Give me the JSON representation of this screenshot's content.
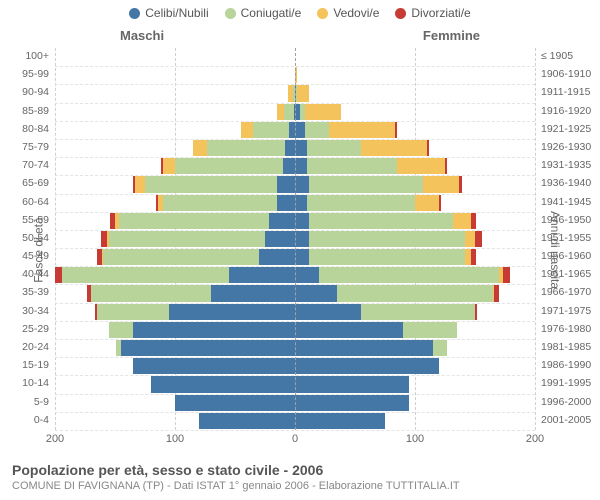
{
  "legend": {
    "items": [
      {
        "label": "Celibi/Nubili",
        "color": "#4577a6"
      },
      {
        "label": "Coniugati/e",
        "color": "#b8d49a"
      },
      {
        "label": "Vedovi/e",
        "color": "#f4c35b"
      },
      {
        "label": "Divorziati/e",
        "color": "#c83b35"
      }
    ]
  },
  "columns": {
    "left": "Maschi",
    "right": "Femmine"
  },
  "axis": {
    "y_left_title": "Fasce di età",
    "y_right_title": "Anni di nascita",
    "x_max": 200,
    "x_ticks": [
      200,
      100,
      0,
      100,
      200
    ]
  },
  "colors": {
    "celibi": "#4577a6",
    "coniugati": "#b8d49a",
    "vedovi": "#f4c35b",
    "divorziati": "#c83b35",
    "grid": "#d0d0d0",
    "center": "#a0a0a0",
    "text": "#666"
  },
  "rows": [
    {
      "age": "100+",
      "birth": "≤ 1905",
      "m": {
        "c": 0,
        "m": 0,
        "v": 0,
        "d": 0
      },
      "f": {
        "c": 0,
        "m": 0,
        "v": 0,
        "d": 0
      }
    },
    {
      "age": "95-99",
      "birth": "1906-1910",
      "m": {
        "c": 0,
        "m": 0,
        "v": 0,
        "d": 0
      },
      "f": {
        "c": 0,
        "m": 0,
        "v": 2,
        "d": 0
      }
    },
    {
      "age": "90-94",
      "birth": "1911-1915",
      "m": {
        "c": 0,
        "m": 2,
        "v": 4,
        "d": 0
      },
      "f": {
        "c": 1,
        "m": 1,
        "v": 10,
        "d": 0
      }
    },
    {
      "age": "85-89",
      "birth": "1916-1920",
      "m": {
        "c": 1,
        "m": 8,
        "v": 6,
        "d": 0
      },
      "f": {
        "c": 4,
        "m": 4,
        "v": 30,
        "d": 0
      }
    },
    {
      "age": "80-84",
      "birth": "1921-1925",
      "m": {
        "c": 5,
        "m": 30,
        "v": 10,
        "d": 0
      },
      "f": {
        "c": 8,
        "m": 20,
        "v": 55,
        "d": 2
      }
    },
    {
      "age": "75-79",
      "birth": "1926-1930",
      "m": {
        "c": 8,
        "m": 65,
        "v": 12,
        "d": 0
      },
      "f": {
        "c": 10,
        "m": 45,
        "v": 55,
        "d": 2
      }
    },
    {
      "age": "70-74",
      "birth": "1931-1935",
      "m": {
        "c": 10,
        "m": 90,
        "v": 10,
        "d": 2
      },
      "f": {
        "c": 10,
        "m": 75,
        "v": 40,
        "d": 2
      }
    },
    {
      "age": "65-69",
      "birth": "1936-1940",
      "m": {
        "c": 15,
        "m": 110,
        "v": 8,
        "d": 2
      },
      "f": {
        "c": 12,
        "m": 95,
        "v": 30,
        "d": 2
      }
    },
    {
      "age": "60-64",
      "birth": "1941-1945",
      "m": {
        "c": 15,
        "m": 95,
        "v": 4,
        "d": 2
      },
      "f": {
        "c": 10,
        "m": 90,
        "v": 20,
        "d": 2
      }
    },
    {
      "age": "55-59",
      "birth": "1946-1950",
      "m": {
        "c": 22,
        "m": 125,
        "v": 3,
        "d": 4
      },
      "f": {
        "c": 12,
        "m": 120,
        "v": 15,
        "d": 4
      }
    },
    {
      "age": "50-54",
      "birth": "1951-1955",
      "m": {
        "c": 25,
        "m": 130,
        "v": 2,
        "d": 5
      },
      "f": {
        "c": 12,
        "m": 130,
        "v": 8,
        "d": 6
      }
    },
    {
      "age": "45-49",
      "birth": "1956-1960",
      "m": {
        "c": 30,
        "m": 130,
        "v": 1,
        "d": 4
      },
      "f": {
        "c": 12,
        "m": 130,
        "v": 5,
        "d": 4
      }
    },
    {
      "age": "40-44",
      "birth": "1961-1965",
      "m": {
        "c": 55,
        "m": 140,
        "v": 0,
        "d": 6
      },
      "f": {
        "c": 20,
        "m": 150,
        "v": 3,
        "d": 6
      }
    },
    {
      "age": "35-39",
      "birth": "1966-1970",
      "m": {
        "c": 70,
        "m": 100,
        "v": 0,
        "d": 3
      },
      "f": {
        "c": 35,
        "m": 130,
        "v": 1,
        "d": 4
      }
    },
    {
      "age": "30-34",
      "birth": "1971-1975",
      "m": {
        "c": 105,
        "m": 60,
        "v": 0,
        "d": 2
      },
      "f": {
        "c": 55,
        "m": 95,
        "v": 0,
        "d": 2
      }
    },
    {
      "age": "25-29",
      "birth": "1976-1980",
      "m": {
        "c": 135,
        "m": 20,
        "v": 0,
        "d": 0
      },
      "f": {
        "c": 90,
        "m": 45,
        "v": 0,
        "d": 0
      }
    },
    {
      "age": "20-24",
      "birth": "1981-1985",
      "m": {
        "c": 145,
        "m": 4,
        "v": 0,
        "d": 0
      },
      "f": {
        "c": 115,
        "m": 12,
        "v": 0,
        "d": 0
      }
    },
    {
      "age": "15-19",
      "birth": "1986-1990",
      "m": {
        "c": 135,
        "m": 0,
        "v": 0,
        "d": 0
      },
      "f": {
        "c": 120,
        "m": 0,
        "v": 0,
        "d": 0
      }
    },
    {
      "age": "10-14",
      "birth": "1991-1995",
      "m": {
        "c": 120,
        "m": 0,
        "v": 0,
        "d": 0
      },
      "f": {
        "c": 95,
        "m": 0,
        "v": 0,
        "d": 0
      }
    },
    {
      "age": "5-9",
      "birth": "1996-2000",
      "m": {
        "c": 100,
        "m": 0,
        "v": 0,
        "d": 0
      },
      "f": {
        "c": 95,
        "m": 0,
        "v": 0,
        "d": 0
      }
    },
    {
      "age": "0-4",
      "birth": "2001-2005",
      "m": {
        "c": 80,
        "m": 0,
        "v": 0,
        "d": 0
      },
      "f": {
        "c": 75,
        "m": 0,
        "v": 0,
        "d": 0
      }
    }
  ],
  "footer": {
    "title": "Popolazione per età, sesso e stato civile - 2006",
    "subtitle": "COMUNE DI FAVIGNANA (TP) - Dati ISTAT 1° gennaio 2006 - Elaborazione TUTTITALIA.IT"
  }
}
